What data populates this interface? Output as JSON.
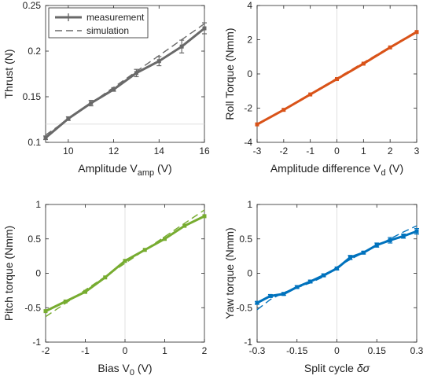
{
  "chart_data": [
    {
      "type": "line",
      "xlabel": "Amplitude V",
      "xlabel_sub": "amp",
      "xlabel_unit": " (V)",
      "ylabel": "Thrust (N)",
      "xlim": [
        9,
        16
      ],
      "ylim": [
        0.1,
        0.25
      ],
      "xticks": [
        10,
        12,
        14,
        16
      ],
      "yticks": [
        0.1,
        0.15,
        0.2,
        0.25
      ],
      "yticklabels": [
        "0.1",
        "0.15",
        "0.2",
        "0.25"
      ],
      "hlines": [
        0.12
      ],
      "color": "#696969",
      "legend": {
        "placement": "top-left",
        "entries": [
          "measurement",
          "simulation"
        ]
      },
      "series": [
        {
          "name": "measurement",
          "style": "solid-marker",
          "x": [
            9,
            10,
            11,
            12,
            13,
            14,
            15,
            16
          ],
          "y": [
            0.105,
            0.126,
            0.143,
            0.158,
            0.176,
            0.189,
            0.205,
            0.225
          ],
          "err": [
            0.002,
            0.002,
            0.003,
            0.002,
            0.004,
            0.005,
            0.007,
            0.006
          ]
        },
        {
          "name": "simulation",
          "style": "dashed",
          "x": [
            9,
            16
          ],
          "y": [
            0.108,
            0.23
          ]
        }
      ]
    },
    {
      "type": "line",
      "xlabel": "Amplitude difference V",
      "xlabel_sub": "d",
      "xlabel_unit": " (V)",
      "ylabel": "Roll Torque (Nmm)",
      "xlim": [
        -3,
        3
      ],
      "ylim": [
        -4,
        4
      ],
      "xticks": [
        -3,
        -2,
        -1,
        0,
        1,
        2,
        3
      ],
      "yticks": [
        -4,
        -2,
        0,
        2,
        4
      ],
      "yticklabels": [
        "-4",
        "-2",
        "0",
        "2",
        "4"
      ],
      "vlines": [
        0
      ],
      "color": "#d95319",
      "series": [
        {
          "style": "solid-marker",
          "x": [
            -3,
            -2,
            -1,
            0,
            1,
            2,
            3
          ],
          "y": [
            -2.95,
            -2.1,
            -1.2,
            -0.3,
            0.6,
            1.55,
            2.45
          ]
        },
        {
          "style": "dashed",
          "x": [
            -3,
            3
          ],
          "y": [
            -3.0,
            2.5
          ]
        }
      ]
    },
    {
      "type": "line",
      "xlabel": "Bias V",
      "xlabel_sub": "0",
      "xlabel_unit": " (V)",
      "ylabel": "Pitch torque (Nmm)",
      "xlim": [
        -2,
        2
      ],
      "ylim": [
        -1,
        1
      ],
      "xticks": [
        -2,
        -1,
        0,
        1,
        2
      ],
      "yticks": [
        -1,
        -0.5,
        0,
        0.5,
        1
      ],
      "yticklabels": [
        "-1",
        "-0.5",
        "0",
        "0.5",
        "1"
      ],
      "vlines": [
        0
      ],
      "color": "#77ac30",
      "series": [
        {
          "style": "solid-marker",
          "x": [
            -2,
            -1.5,
            -1,
            -0.5,
            0,
            0.5,
            1,
            1.5,
            2
          ],
          "y": [
            -0.55,
            -0.41,
            -0.27,
            -0.06,
            0.18,
            0.34,
            0.5,
            0.69,
            0.83
          ]
        },
        {
          "style": "dashed",
          "x": [
            -2,
            2
          ],
          "y": [
            -0.63,
            0.92
          ]
        }
      ]
    },
    {
      "type": "line",
      "xlabel": "Split cycle ",
      "xlabel_sub": "",
      "xlabel_unit": "δσ",
      "ylabel": "Yaw torque (Nmm)",
      "xlim": [
        -0.3,
        0.3
      ],
      "ylim": [
        -1,
        1
      ],
      "xticks": [
        -0.3,
        -0.15,
        0,
        0.15,
        0.3
      ],
      "xticklabels": [
        "-0.3",
        "-0.15",
        "0",
        "0.15",
        "0.3"
      ],
      "yticks": [
        -1,
        -0.5,
        0,
        0.5,
        1
      ],
      "yticklabels": [
        "-1",
        "-0.5",
        "0",
        "0.5",
        "1"
      ],
      "vlines": [
        0
      ],
      "color": "#0072bd",
      "series": [
        {
          "style": "solid-marker",
          "x": [
            -0.3,
            -0.25,
            -0.2,
            -0.15,
            -0.1,
            -0.05,
            0,
            0.05,
            0.1,
            0.15,
            0.2,
            0.25,
            0.3
          ],
          "y": [
            -0.43,
            -0.33,
            -0.3,
            -0.2,
            -0.12,
            -0.03,
            0.07,
            0.23,
            0.3,
            0.41,
            0.48,
            0.54,
            0.61
          ],
          "err": [
            0.02,
            0.02,
            0.02,
            0.02,
            0.02,
            0.02,
            0.02,
            0.03,
            0.02,
            0.03,
            0.04,
            0.03,
            0.04
          ]
        },
        {
          "style": "dashed",
          "x": [
            -0.3,
            -0.25,
            -0.2,
            -0.15,
            -0.1,
            -0.05,
            0,
            0.05,
            0.1,
            0.15,
            0.2,
            0.25,
            0.3
          ],
          "y": [
            -0.53,
            -0.38,
            -0.28,
            -0.21,
            -0.14,
            -0.05,
            0.09,
            0.2,
            0.3,
            0.4,
            0.5,
            0.6,
            0.69
          ]
        }
      ]
    }
  ]
}
